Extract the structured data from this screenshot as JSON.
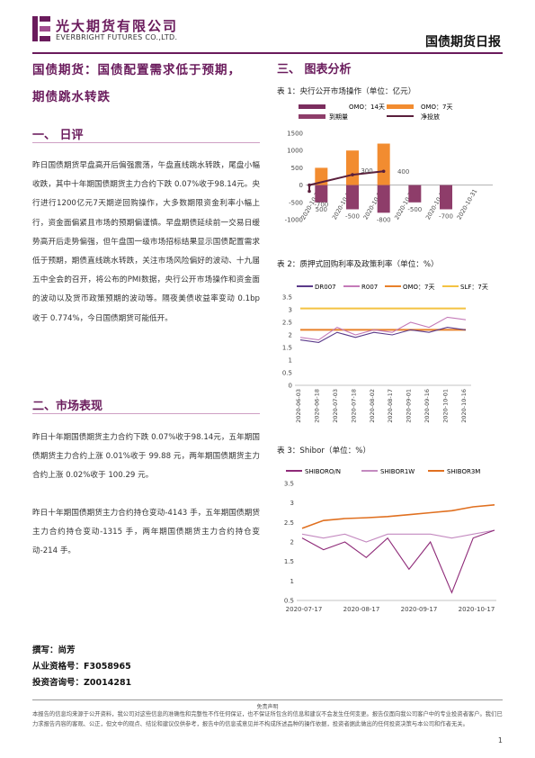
{
  "header": {
    "logo_cn": "光大期货有限公司",
    "logo_en": "EVERBRIGHT FUTURES CO.,LTD.",
    "report_title": "国债期货日报"
  },
  "headline": {
    "line1": "国债期货：国债配置需求低于预期，",
    "line2": "期债跳水转跌"
  },
  "section1": {
    "heading": "一、  日评",
    "body": "昨日国债期货早盘高开后偏强震荡，午盘直线跳水转跌，尾盘小幅收跌，其中十年期国债期货主力合约下跌 0.07%收于98.14元。央行进行1200亿元7天期逆回购操作，大多数期限资金利率小幅上行，资金面偏紧且市场的预期偏谨慎。早盘期债延续前一交易日缓势高开后走势偏强，但午盘国一级市场招标结果显示国债配置需求低于预期，期债直线跳水转跌，关注市场风险偏好的波动、十九届五中全会的召开，将公布的PMI数据，央行公开市场操作和资金面的波动以及货币政策预期的波动等。隔夜美债收益率变动 0.1bp 收于 0.774%，今日国债期货可能低开。"
  },
  "section2": {
    "heading": "二、市场表现",
    "para1": "昨日十年期国债期货主力合约下跌 0.07%收于98.14元，五年期国债期货主力合约上涨 0.01%收于 99.88 元，两年期国债期货主力合约上涨 0.02%收于 100.29 元。",
    "para2": "昨日十年期国债期货主力合约持仓变动-4143 手，五年期国债期货主力合约持仓变动-1315 手，两年期国债期货主力合约持仓变动-214 手。"
  },
  "section3": {
    "heading": "三、   图表分析"
  },
  "author": {
    "name_line": "撰写：尚芳",
    "license_line": "从业资格号：F3058965",
    "advisor_line": "投资咨询号：Z0014281"
  },
  "footer": {
    "disclaimer_title": "免责声明",
    "disclaimer": "本报告的信息均来源于公开资料，我公司对这些信息的准确性和完整性不作任何保证，也不保证所包含的信息和建议不会发生任何变更。报告仅面向我公司客户中的专业投资者客户。我们已力求报告内容的客观、公正，但文中的观点、结论和建议仅供参考，报告中的信息或意见并不构成所述品种的操作依据，投资者据此做出的任何投资决策与本公司和作者无关。",
    "page_number": "1"
  },
  "colors": {
    "brand": "#6a1b5c",
    "omo14": "#7b2d5e",
    "omo7": "#f28c30",
    "maturity": "#8e3d6a",
    "net": "#5a1f3c",
    "dr007": "#5b3a8a",
    "r007": "#c47ab8",
    "omo_rate": "#e8802a",
    "slf": "#f4c242",
    "shibor_on": "#8e2a78",
    "shibor_1w": "#c48ac0",
    "shibor_3m": "#e07020"
  },
  "chart_data": [
    {
      "type": "bar",
      "title": "表 1：央行公开市场操作（单位：亿元）",
      "legend": [
        "OMO：14天",
        "OMO：7天",
        "到期量",
        "净投放"
      ],
      "categories": [
        "2020-10-26",
        "2020-10-27",
        "2020-10-28",
        "2020-10-29",
        "2020-10-30",
        "2020-10-31"
      ],
      "series": [
        {
          "name": "OMO：7天",
          "values": [
            500,
            1000,
            1200,
            0,
            0,
            0
          ]
        },
        {
          "name": "到期量",
          "values": [
            -500,
            -700,
            -800,
            -500,
            -700,
            0
          ]
        },
        {
          "name": "净投放",
          "values": [
            0,
            300,
            400,
            null,
            null,
            null
          ]
        }
      ],
      "bar_labels": [
        "500",
        "-500",
        "-700",
        "300",
        "-800",
        "400",
        "-500",
        "-700"
      ],
      "ylim": [
        -1000,
        1500
      ],
      "yticks": [
        "1500",
        "1000",
        "500",
        "0",
        "-500",
        "-1000"
      ]
    },
    {
      "type": "line",
      "title": "表 2：质押式回购利率及政策利率（单位：%）",
      "legend": [
        "DR007",
        "R007",
        "OMO：7天",
        "SLF：7天"
      ],
      "xticks": [
        "2020-06-03",
        "2020-06-18",
        "2020-07-03",
        "2020-07-18",
        "2020-08-02",
        "2020-08-17",
        "2020-09-01",
        "2020-09-16",
        "2020-10-01",
        "2020-10-16"
      ],
      "ylim": [
        0,
        3.5
      ],
      "yticks": [
        "3.5",
        "3",
        "2.5",
        "2",
        "1.5",
        "1",
        "0.5",
        "0"
      ],
      "series": [
        {
          "name": "OMO：7天",
          "values": [
            2.2,
            2.2,
            2.2,
            2.2,
            2.2,
            2.2,
            2.2,
            2.2,
            2.2,
            2.2
          ]
        },
        {
          "name": "SLF：7天",
          "values": [
            3.05,
            3.05,
            3.05,
            3.05,
            3.05,
            3.05,
            3.05,
            3.05,
            3.05,
            3.05
          ]
        },
        {
          "name": "DR007",
          "values": [
            1.8,
            1.7,
            2.1,
            1.9,
            2.1,
            2.0,
            2.2,
            2.1,
            2.3,
            2.2
          ]
        },
        {
          "name": "R007",
          "values": [
            1.9,
            1.8,
            2.3,
            2.0,
            2.2,
            2.1,
            2.5,
            2.3,
            2.7,
            2.6
          ]
        }
      ]
    },
    {
      "type": "line",
      "title": "表 3：Shibor（单位：%）",
      "legend": [
        "SHIBORO/N",
        "SHIBOR1W",
        "SHIBOR3M"
      ],
      "xticks": [
        "2020-07-17",
        "2020-08-17",
        "2020-09-17",
        "2020-10-17"
      ],
      "ylim": [
        0.5,
        3.5
      ],
      "yticks": [
        "3.5",
        "3",
        "2.5",
        "2",
        "1.5",
        "1",
        "0.5"
      ],
      "series": [
        {
          "name": "SHIBOR3M",
          "values": [
            2.35,
            2.55,
            2.6,
            2.62,
            2.65,
            2.7,
            2.75,
            2.8,
            2.9,
            2.95
          ]
        },
        {
          "name": "SHIBOR1W",
          "values": [
            2.2,
            2.1,
            2.2,
            2.0,
            2.2,
            2.2,
            2.2,
            2.1,
            2.2,
            2.3
          ]
        },
        {
          "name": "SHIBORO/N",
          "values": [
            2.1,
            1.8,
            2.0,
            1.6,
            2.1,
            1.3,
            2.0,
            0.7,
            2.1,
            2.3
          ]
        }
      ]
    }
  ]
}
